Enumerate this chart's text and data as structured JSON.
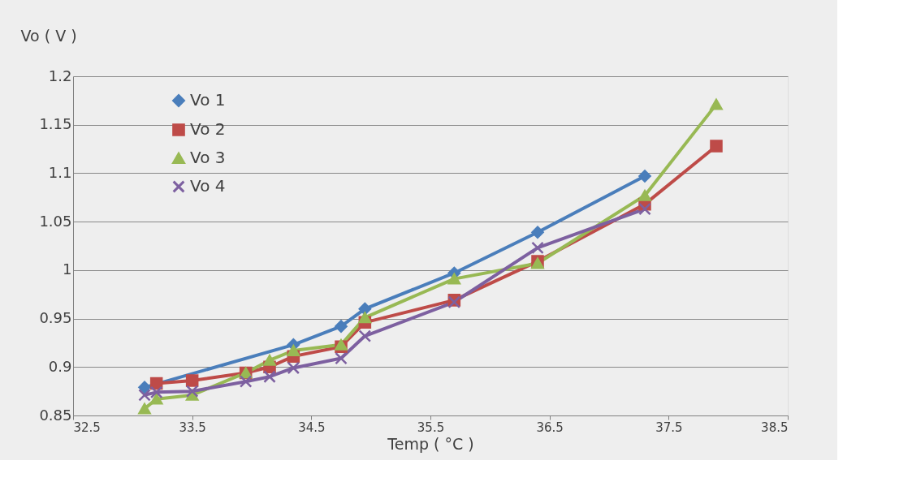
{
  "chart_data": {
    "type": "line",
    "xlabel": "Temp ( °C )",
    "ylabel": "Vo ( V )",
    "xlim": [
      32.5,
      38.5
    ],
    "xticks": [
      32.5,
      33.5,
      34.5,
      35.5,
      36.5,
      37.5,
      38.5
    ],
    "ylim": [
      0.85,
      1.2
    ],
    "yticks": [
      0.85,
      0.9,
      0.95,
      1,
      1.05,
      1.1,
      1.15,
      1.2
    ],
    "grid": "y",
    "legend": "top left",
    "line_style": "solid",
    "series": [
      {
        "name": "Vo 1",
        "color": "#4a7ebb",
        "marker": "diamond",
        "x": [
          33.1,
          34.35,
          34.75,
          34.95,
          35.7,
          36.4,
          37.3
        ],
        "values": [
          0.879,
          0.923,
          0.942,
          0.96,
          0.997,
          1.039,
          1.097
        ]
      },
      {
        "name": "Vo 2",
        "color": "#be4b48",
        "marker": "square",
        "x": [
          33.2,
          33.5,
          33.95,
          34.15,
          34.35,
          34.75,
          34.95,
          35.7,
          36.4,
          37.3,
          37.9
        ],
        "values": [
          0.883,
          0.886,
          0.894,
          0.9,
          0.911,
          0.921,
          0.946,
          0.969,
          1.009,
          1.068,
          1.128
        ]
      },
      {
        "name": "Vo 3",
        "color": "#98b954",
        "marker": "triangle",
        "x": [
          33.1,
          33.2,
          33.5,
          33.95,
          34.15,
          34.35,
          34.75,
          34.95,
          35.7,
          36.4,
          37.3,
          37.9
        ],
        "values": [
          0.857,
          0.867,
          0.871,
          0.894,
          0.907,
          0.917,
          0.923,
          0.951,
          0.991,
          1.007,
          1.077,
          1.171
        ]
      },
      {
        "name": "Vo 4",
        "color": "#7d60a0",
        "marker": "cross",
        "x": [
          33.1,
          33.2,
          33.5,
          33.95,
          34.15,
          34.35,
          34.75,
          34.95,
          35.7,
          36.4,
          37.3
        ],
        "values": [
          0.871,
          0.874,
          0.875,
          0.885,
          0.89,
          0.899,
          0.909,
          0.932,
          0.967,
          1.023,
          1.063
        ]
      }
    ]
  }
}
